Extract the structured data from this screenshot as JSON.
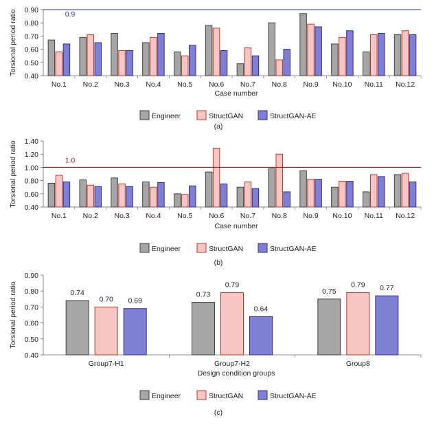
{
  "colors": {
    "engineer_fill": "#a6a6a6",
    "engineer_stroke": "#404040",
    "structgan_fill": "#f4c6c4",
    "structgan_stroke": "#c0392b",
    "structganae_fill": "#7f7fd4",
    "structganae_stroke": "#2f2f8a",
    "refline_a": "#2e2ec8",
    "refline_b": "#b02020"
  },
  "chart_data": [
    {
      "type": "bar",
      "panel_label": "(a)",
      "title": "",
      "ylabel": "Torsional period ratio",
      "xlabel": "Case number",
      "ylim": [
        0.4,
        0.9
      ],
      "yticks": [
        "0.40",
        "0.50",
        "0.60",
        "0.70",
        "0.80",
        "0.90"
      ],
      "ytick_values": [
        0.4,
        0.5,
        0.6,
        0.7,
        0.8,
        0.9
      ],
      "categories": [
        "No.1",
        "No.2",
        "No.3",
        "No.4",
        "No.5",
        "No.6",
        "No.7",
        "No.8",
        "No.9",
        "No.10",
        "No.11",
        "No.12"
      ],
      "series": [
        {
          "name": "Engineer",
          "values": [
            0.67,
            0.69,
            0.72,
            0.65,
            0.58,
            0.78,
            0.49,
            0.8,
            0.87,
            0.64,
            0.58,
            0.71
          ]
        },
        {
          "name": "StructGAN",
          "values": [
            0.58,
            0.71,
            0.59,
            0.69,
            0.55,
            0.76,
            0.61,
            0.52,
            0.79,
            0.69,
            0.71,
            0.74
          ]
        },
        {
          "name": "StructGAN-AE",
          "values": [
            0.64,
            0.65,
            0.59,
            0.72,
            0.63,
            0.59,
            0.55,
            0.6,
            0.77,
            0.74,
            0.72,
            0.71
          ]
        }
      ],
      "reference_line": {
        "value": 0.9,
        "label": "0.9"
      },
      "legend": "bottom-center"
    },
    {
      "type": "bar",
      "panel_label": "(b)",
      "title": "",
      "ylabel": "Torsional period ratio",
      "xlabel": "Case number",
      "ylim": [
        0.4,
        1.4
      ],
      "yticks": [
        "0.40",
        "0.60",
        "0.80",
        "1.00",
        "1.20",
        "1.40"
      ],
      "ytick_values": [
        0.4,
        0.6,
        0.8,
        1.0,
        1.2,
        1.4
      ],
      "categories": [
        "No.1",
        "No.2",
        "No.3",
        "No.4",
        "No.5",
        "No.6",
        "No.7",
        "No.8",
        "No.9",
        "No.10",
        "No.11",
        "No.12"
      ],
      "series": [
        {
          "name": "Engineer",
          "values": [
            0.76,
            0.81,
            0.84,
            0.78,
            0.6,
            0.93,
            0.7,
            0.98,
            0.95,
            0.7,
            0.63,
            0.89
          ]
        },
        {
          "name": "StructGAN",
          "values": [
            0.88,
            0.73,
            0.75,
            0.7,
            0.59,
            1.29,
            0.78,
            1.2,
            0.82,
            0.79,
            0.89,
            0.91
          ]
        },
        {
          "name": "StructGAN-AE",
          "values": [
            0.78,
            0.71,
            0.71,
            0.77,
            0.72,
            0.75,
            0.68,
            0.63,
            0.82,
            0.79,
            0.86,
            0.78
          ]
        }
      ],
      "reference_line": {
        "value": 1.0,
        "label": "1.0"
      },
      "legend": "bottom-center"
    },
    {
      "type": "bar",
      "panel_label": "(c)",
      "title": "",
      "ylabel": "Torsional period ratio",
      "xlabel": "Design condition groups",
      "ylim": [
        0.4,
        0.9
      ],
      "yticks": [
        "0.40",
        "0.50",
        "0.60",
        "0.70",
        "0.80",
        "0.90"
      ],
      "ytick_values": [
        0.4,
        0.5,
        0.6,
        0.7,
        0.8,
        0.9
      ],
      "categories": [
        "Group7-H1",
        "Group7-H2",
        "Group8"
      ],
      "series": [
        {
          "name": "Engineer",
          "values": [
            0.74,
            0.73,
            0.75
          ],
          "labels": [
            "0.74",
            "0.73",
            "0.75"
          ]
        },
        {
          "name": "StructGAN",
          "values": [
            0.7,
            0.79,
            0.79
          ],
          "labels": [
            "0.70",
            "0.79",
            "0.79"
          ]
        },
        {
          "name": "StructGAN-AE",
          "values": [
            0.69,
            0.64,
            0.77
          ],
          "labels": [
            "0.69",
            "0.64",
            "0.77"
          ]
        }
      ],
      "legend": "bottom-center"
    }
  ]
}
